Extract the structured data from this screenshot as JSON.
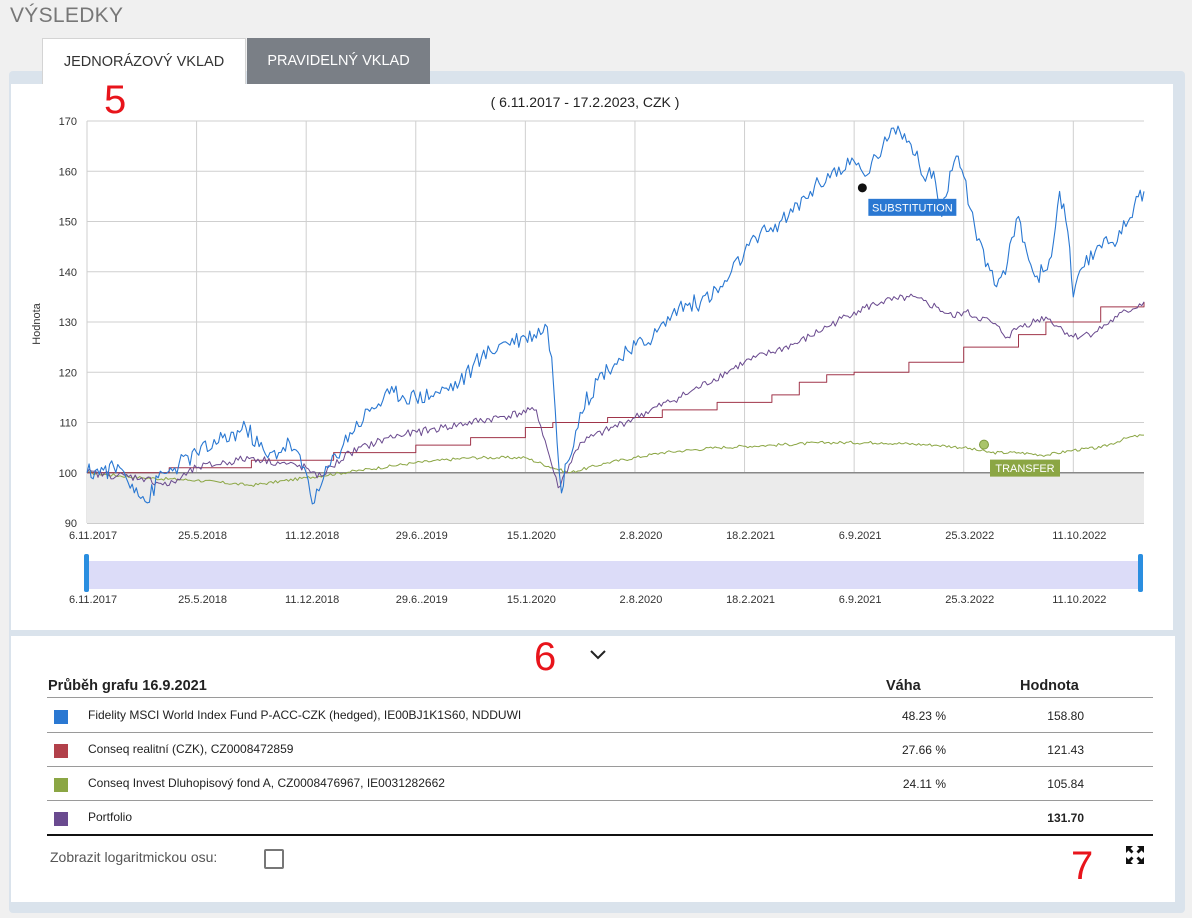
{
  "page": {
    "title": "VÝSLEDKY"
  },
  "tabs": [
    {
      "label": "JEDNORÁZOVÝ VKLAD",
      "active": true
    },
    {
      "label": "PRAVIDELNÝ VKLAD",
      "active": false
    }
  ],
  "annotations": {
    "a5": "5",
    "a6": "6",
    "a7": "7"
  },
  "colors": {
    "world": "#2a78d2",
    "realit": "#a0354a",
    "bond": "#8ba644",
    "portfolio": "#6a4a8f",
    "base": "#888888",
    "area": "#ebebeb",
    "navigator": "#dcdcf8",
    "handle": "#2a8ee0"
  },
  "chart_data": {
    "type": "line",
    "title": "( 6.11.2017 - 17.2.2023, CZK )",
    "ylabel": "Hodnota",
    "ylim": [
      90,
      170
    ],
    "yticks": [
      90,
      100,
      110,
      120,
      130,
      140,
      150,
      160,
      170
    ],
    "xlim": [
      0,
      1929
    ],
    "xticks": [
      {
        "label": "6.11.2017",
        "day": 0
      },
      {
        "label": "25.5.2018",
        "day": 200
      },
      {
        "label": "11.12.2018",
        "day": 400
      },
      {
        "label": "29.6..2019",
        "day": 600
      },
      {
        "label": "15.1.2020",
        "day": 800
      },
      {
        "label": "2.8.2020",
        "day": 1000
      },
      {
        "label": "18.2.2021",
        "day": 1200
      },
      {
        "label": "6.9.2021",
        "day": 1400
      },
      {
        "label": "25.3.2022",
        "day": 1600
      },
      {
        "label": "11.10.2022",
        "day": 1800
      }
    ],
    "nav_xticks": [
      "6.11.2017",
      "25.5.2018",
      "11.12.2018",
      "29.6..2019",
      "15.1.2020",
      "2.8.2020",
      "18.2.2021",
      "6.9.2021",
      "25.3.2022",
      "11.10.2022"
    ],
    "baseline": 100,
    "series": [
      {
        "name": "Fidelity MSCI World Index Fund P-ACC-CZK (hedged)",
        "key": "world",
        "points": [
          [
            0,
            100
          ],
          [
            30,
            100.5
          ],
          [
            60,
            101
          ],
          [
            90,
            97
          ],
          [
            110,
            94
          ],
          [
            130,
            99
          ],
          [
            160,
            101
          ],
          [
            200,
            104
          ],
          [
            240,
            106
          ],
          [
            290,
            109
          ],
          [
            330,
            103
          ],
          [
            370,
            106
          ],
          [
            400,
            100
          ],
          [
            415,
            94
          ],
          [
            440,
            101
          ],
          [
            480,
            108
          ],
          [
            520,
            113
          ],
          [
            560,
            116
          ],
          [
            600,
            115
          ],
          [
            640,
            116
          ],
          [
            680,
            118
          ],
          [
            720,
            123
          ],
          [
            760,
            126
          ],
          [
            800,
            127
          ],
          [
            840,
            129
          ],
          [
            848,
            123
          ],
          [
            858,
            106
          ],
          [
            866,
            96
          ],
          [
            876,
            102
          ],
          [
            900,
            112
          ],
          [
            940,
            120
          ],
          [
            990,
            124
          ],
          [
            1040,
            128
          ],
          [
            1080,
            133
          ],
          [
            1120,
            134
          ],
          [
            1160,
            137
          ],
          [
            1200,
            144
          ],
          [
            1240,
            148
          ],
          [
            1280,
            151
          ],
          [
            1320,
            156
          ],
          [
            1360,
            160
          ],
          [
            1380,
            160
          ],
          [
            1400,
            162
          ],
          [
            1420,
            159
          ],
          [
            1440,
            163
          ],
          [
            1460,
            166
          ],
          [
            1480,
            169
          ],
          [
            1500,
            166
          ],
          [
            1515,
            164
          ],
          [
            1530,
            158
          ],
          [
            1545,
            160
          ],
          [
            1560,
            151
          ],
          [
            1575,
            160
          ],
          [
            1590,
            163
          ],
          [
            1600,
            159
          ],
          [
            1620,
            149
          ],
          [
            1640,
            141
          ],
          [
            1660,
            137
          ],
          [
            1680,
            142
          ],
          [
            1700,
            151
          ],
          [
            1715,
            144
          ],
          [
            1730,
            139
          ],
          [
            1745,
            140
          ],
          [
            1760,
            143
          ],
          [
            1775,
            156
          ],
          [
            1790,
            148
          ],
          [
            1800,
            135
          ],
          [
            1820,
            141
          ],
          [
            1840,
            144
          ],
          [
            1860,
            147
          ],
          [
            1880,
            146
          ],
          [
            1900,
            150
          ],
          [
            1915,
            155
          ],
          [
            1929,
            156
          ]
        ]
      },
      {
        "name": "Conseq realitní (CZK)",
        "key": "realit",
        "points": [
          [
            0,
            100
          ],
          [
            150,
            101
          ],
          [
            300,
            102.5
          ],
          [
            450,
            104
          ],
          [
            600,
            105.5
          ],
          [
            700,
            107
          ],
          [
            800,
            109
          ],
          [
            850,
            110
          ],
          [
            950,
            111
          ],
          [
            1050,
            112.5
          ],
          [
            1150,
            114
          ],
          [
            1250,
            115.5
          ],
          [
            1300,
            118
          ],
          [
            1350,
            119.5
          ],
          [
            1400,
            120
          ],
          [
            1500,
            122
          ],
          [
            1600,
            125
          ],
          [
            1700,
            127.5
          ],
          [
            1750,
            130
          ],
          [
            1850,
            133
          ],
          [
            1929,
            134
          ]
        ]
      },
      {
        "name": "Conseq Invest Dluhopisový fond A",
        "key": "bond",
        "points": [
          [
            0,
            100
          ],
          [
            100,
            99
          ],
          [
            200,
            98.5
          ],
          [
            300,
            97.5
          ],
          [
            400,
            99
          ],
          [
            500,
            100.5
          ],
          [
            600,
            102
          ],
          [
            700,
            103
          ],
          [
            800,
            103
          ],
          [
            850,
            101
          ],
          [
            880,
            100
          ],
          [
            950,
            102
          ],
          [
            1050,
            104
          ],
          [
            1150,
            105
          ],
          [
            1250,
            105.5
          ],
          [
            1350,
            106
          ],
          [
            1450,
            106
          ],
          [
            1550,
            105.5
          ],
          [
            1600,
            105
          ],
          [
            1650,
            104
          ],
          [
            1700,
            104
          ],
          [
            1750,
            103.5
          ],
          [
            1800,
            104.5
          ],
          [
            1850,
            105
          ],
          [
            1900,
            107
          ],
          [
            1929,
            107.5
          ]
        ]
      },
      {
        "name": "Portfolio",
        "key": "portfolio",
        "points": [
          [
            0,
            100
          ],
          [
            100,
            99
          ],
          [
            150,
            97.5
          ],
          [
            200,
            101
          ],
          [
            300,
            103
          ],
          [
            400,
            101
          ],
          [
            420,
            99
          ],
          [
            480,
            104
          ],
          [
            550,
            107
          ],
          [
            650,
            109
          ],
          [
            750,
            111
          ],
          [
            820,
            112.5
          ],
          [
            860,
            97
          ],
          [
            900,
            106
          ],
          [
            1000,
            111
          ],
          [
            1100,
            116
          ],
          [
            1200,
            122
          ],
          [
            1300,
            126
          ],
          [
            1350,
            129
          ],
          [
            1400,
            132
          ],
          [
            1450,
            134
          ],
          [
            1480,
            134.5
          ],
          [
            1500,
            135
          ],
          [
            1550,
            133
          ],
          [
            1580,
            131
          ],
          [
            1600,
            132
          ],
          [
            1650,
            130
          ],
          [
            1680,
            127
          ],
          [
            1700,
            129
          ],
          [
            1750,
            131
          ],
          [
            1800,
            127
          ],
          [
            1840,
            128
          ],
          [
            1880,
            131
          ],
          [
            1929,
            134
          ]
        ]
      }
    ],
    "markers": [
      {
        "label": "SUBSTITUTION",
        "day": 1415,
        "value": 156.7,
        "series": "world"
      },
      {
        "label": "TRANSFER",
        "day": 1637,
        "value": 105.6,
        "series": "bond"
      }
    ]
  },
  "table": {
    "title": "Průběh grafu 16.9.2021",
    "col_weight": "Váha",
    "col_value": "Hodnota",
    "rows": [
      {
        "name": "Fidelity MSCI World Index Fund P-ACC-CZK (hedged), IE00BJ1K1S60, NDDUWI",
        "weight": "48.23 %",
        "value": "158.80",
        "color": "#2a78d2"
      },
      {
        "name": "Conseq realitní (CZK), CZ0008472859",
        "weight": "27.66 %",
        "value": "121.43",
        "color": "#b2404a"
      },
      {
        "name": "Conseq Invest Dluhopisový fond A, CZ0008476967, IE0031282662",
        "weight": "24.11 %",
        "value": "105.84",
        "color": "#8ba644"
      },
      {
        "name": "Portfolio",
        "weight": "",
        "value": "131.70",
        "color": "#6a4a8f"
      }
    ]
  },
  "controls": {
    "log_label": "Zobrazit logaritmickou osu:",
    "log_checked": false
  }
}
